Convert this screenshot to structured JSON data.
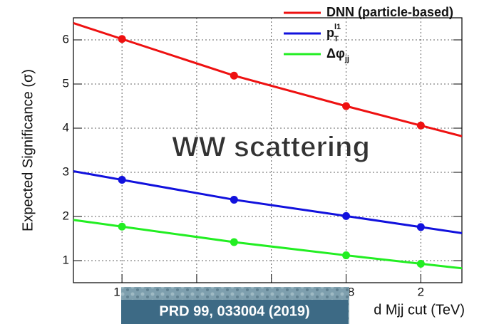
{
  "chart_data": {
    "type": "line",
    "xlabel": "d Mjj cut (TeV)",
    "ylabel": "Expected Significance (σ)",
    "x": [
      1.2,
      1.5,
      1.8,
      2.0
    ],
    "xlim": [
      1.07,
      2.11
    ],
    "ylim": [
      0.5,
      6.5
    ],
    "xticks": [
      1.2,
      1.4,
      1.6,
      1.8,
      2
    ],
    "yticks": [
      1,
      2,
      3,
      4,
      5,
      6
    ],
    "grid": true,
    "series": [
      {
        "name": "DNN (particle-based)",
        "color": "#ee1111",
        "values": [
          6.02,
          5.19,
          4.5,
          4.06
        ]
      },
      {
        "name": "p",
        "name_sub": "T",
        "name_sup": "l1",
        "color": "#1111dd",
        "values": [
          2.83,
          2.38,
          2.01,
          1.76
        ]
      },
      {
        "name": "Δφ",
        "name_sub": "jj",
        "color": "#22ee22",
        "values": [
          1.77,
          1.42,
          1.12,
          0.93
        ]
      }
    ],
    "annotations": [
      "WW scattering",
      "PRD 99, 033004 (2019)"
    ]
  }
}
